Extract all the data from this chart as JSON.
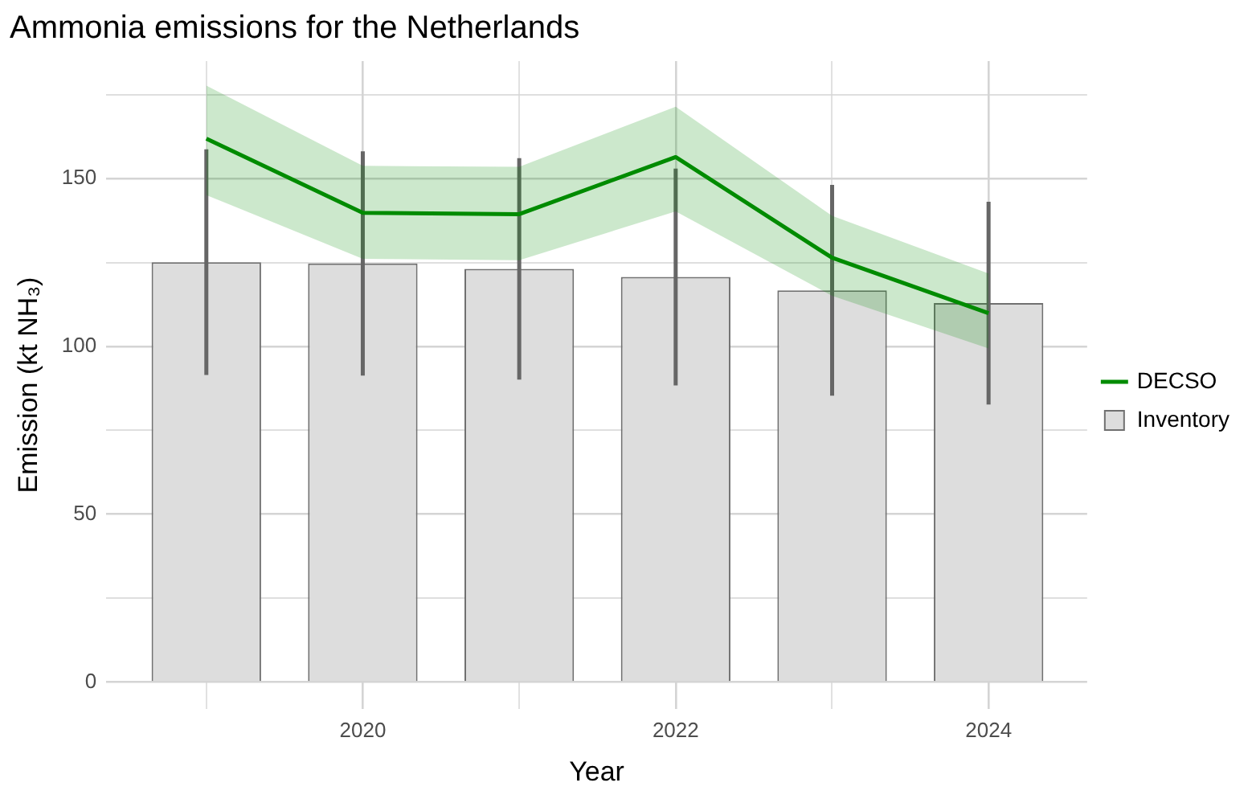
{
  "chart_data": {
    "type": "bar",
    "title": "Ammonia emissions for the Netherlands",
    "xlabel": "Year",
    "ylabel": "Emission (kt NH₃)",
    "x": [
      2019,
      2020,
      2021,
      2022,
      2023,
      2024
    ],
    "series": [
      {
        "name": "DECSO",
        "type": "line",
        "color": "#008b00",
        "values": [
          161.9,
          139.8,
          139.4,
          156.4,
          126.4,
          109.9
        ],
        "lower": [
          145.1,
          126.1,
          125.7,
          140.2,
          115.1,
          99.4
        ],
        "upper": [
          177.7,
          153.8,
          153.5,
          171.4,
          138.9,
          121.7
        ]
      },
      {
        "name": "Inventory",
        "color": "#dddddd",
        "values": [
          125.1,
          124.7,
          123.1,
          120.7,
          116.7,
          112.9
        ],
        "errors": [
          33.6,
          33.4,
          33.0,
          32.3,
          31.4,
          30.2
        ]
      }
    ],
    "xlim": [
      2018.36,
      2024.63
    ],
    "xticks": [
      {
        "value": 2019,
        "label": null
      },
      2020,
      {
        "value": 2021,
        "label": null
      },
      2022,
      {
        "value": 2023,
        "label": null
      },
      2024
    ],
    "ylim": [
      -8,
      185
    ],
    "yticks": [
      0,
      {
        "value": 25,
        "label": null
      },
      50,
      {
        "value": 75,
        "label": null
      },
      100,
      {
        "value": 125,
        "label": null
      },
      150,
      {
        "value": 175,
        "label": null
      }
    ],
    "grid": true,
    "legend": "right",
    "marker": "none",
    "line_style": "solid"
  }
}
